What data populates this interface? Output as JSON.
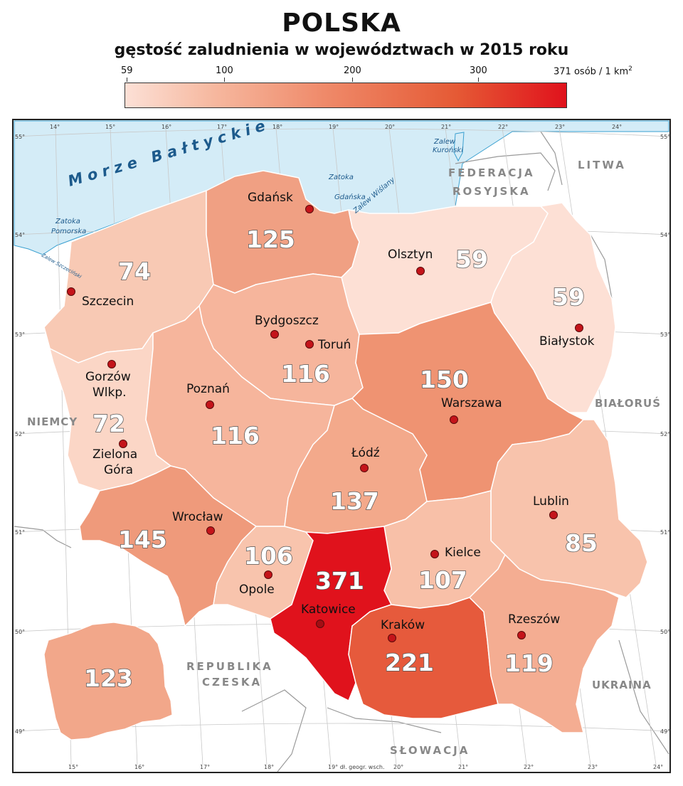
{
  "title": "POLSKA",
  "subtitle": "gęstość zaludnienia w województwach w 2015 roku",
  "legend": {
    "ticks": [
      "59",
      "100",
      "200",
      "300",
      "371"
    ],
    "unit_text": "osób / 1 km",
    "unit_superscript": "2",
    "colors": [
      "#fce0d6",
      "#f6b89f",
      "#ef8a6a",
      "#e55a35",
      "#e0121c"
    ]
  },
  "map": {
    "sea_name": "Morze Bałtyckie",
    "water_labels": {
      "zatoka_gdanska_1": "Zatoka",
      "zatoka_gdanska_2": "Gdańska",
      "zalew_wislany": "Zalew Wiślany",
      "zalew_kuronski_1": "Zalew",
      "zalew_kuronski_2": "Kuroński",
      "zatoka_pomorska_1": "Zatoka",
      "zatoka_pomorska_2": "Pomorska",
      "zalew_szczecinski": "Zalew Szczeciński"
    },
    "countries": {
      "rosja_1": "FEDERACJA",
      "rosja_2": "ROSYJSKA",
      "litwa": "LITWA",
      "bialorus": "BIAŁORUŚ",
      "ukraina": "UKRAINA",
      "slowacja": "SŁOWACJA",
      "czechy_1": "REPUBLIKA",
      "czechy_2": "CZESKA",
      "niemcy": "NIEMCY"
    },
    "cities": {
      "gdansk": "Gdańsk",
      "olsztyn": "Olsztyn",
      "bialystok": "Białystok",
      "szczecin": "Szczecin",
      "bydgoszcz": "Bydgoszcz",
      "torun": "Toruń",
      "gorzow_1": "Gorzów",
      "gorzow_2": "Wlkp.",
      "poznan": "Poznań",
      "warszawa": "Warszawa",
      "zielona_1": "Zielona",
      "zielona_2": "Góra",
      "lodz": "Łódź",
      "lublin": "Lublin",
      "wroclaw": "Wrocław",
      "kielce": "Kielce",
      "opole": "Opole",
      "katowice": "Katowice",
      "krakow": "Kraków",
      "rzeszow": "Rzeszów"
    },
    "voivodeship_density": {
      "pomorskie": 125,
      "warminsko_mazurskie": 59,
      "podlaskie": 59,
      "zachodniopomorskie": 74,
      "kujawsko_pomorskie": 116,
      "wielkopolskie": 116,
      "lubuskie": 72,
      "mazowieckie": 150,
      "lodzkie": 137,
      "lubelskie": 85,
      "dolnoslaskie": 145,
      "opolskie": 106,
      "slaskie": 371,
      "swietokrzyskie": 107,
      "malopolskie": 221,
      "podkarpackie": 119,
      "poland_total": 123
    },
    "longitude_labels": [
      "14°",
      "15°",
      "16°",
      "17°",
      "18°",
      "19°",
      "20°",
      "21°",
      "22°",
      "23°",
      "24°"
    ],
    "longitude_bottom_labels": [
      "15°",
      "16°",
      "17°",
      "18°",
      "19° dł. geogr. wsch.",
      "20°",
      "21°",
      "22°",
      "23°",
      "24°"
    ],
    "latitude_labels": [
      "55°",
      "54°",
      "53°",
      "52°",
      "51°",
      "50°",
      "49°"
    ]
  }
}
